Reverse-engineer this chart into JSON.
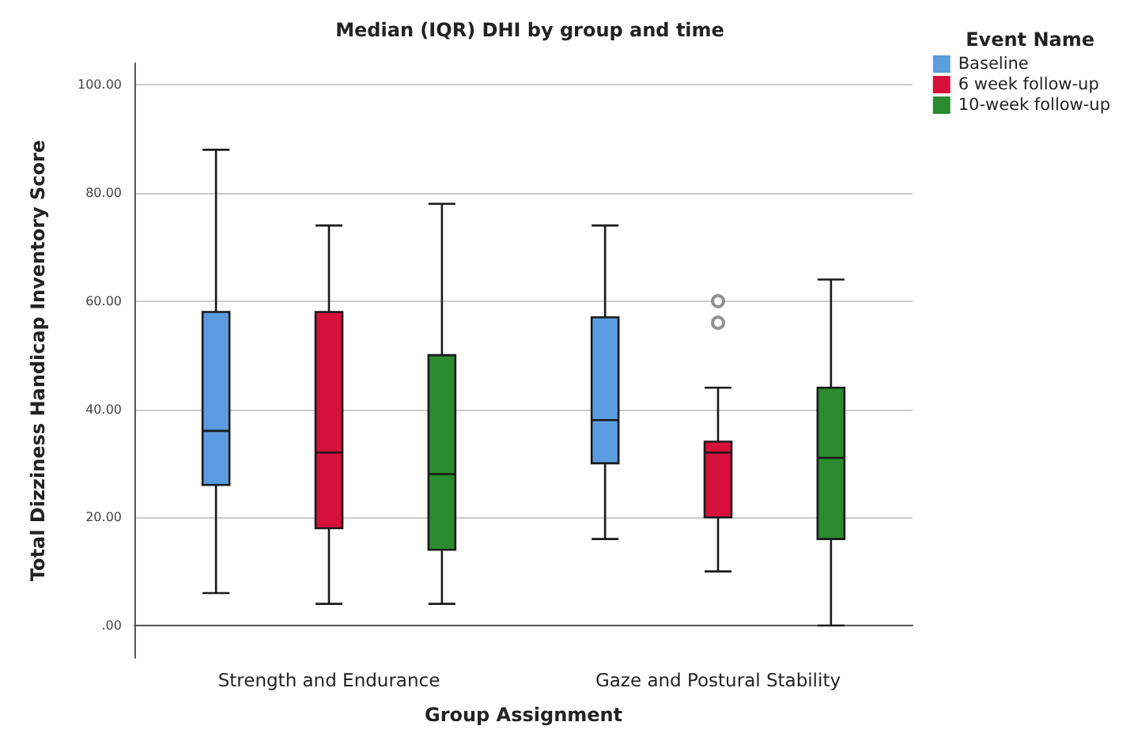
{
  "chart_data": {
    "type": "box",
    "title": "Median (IQR) DHI by group and time",
    "xlabel": "Group Assignment",
    "ylabel": "Total Dizziness Handicap Inventory Score",
    "legend_title": "Event Name",
    "categories": [
      "Strength and Endurance",
      "Gaze and Postural Stability"
    ],
    "series": [
      {
        "name": "Baseline",
        "color": "#5b9be0",
        "boxes": [
          {
            "low": 6,
            "q1": 26,
            "median": 36,
            "q3": 58,
            "high": 88
          },
          {
            "low": 16,
            "q1": 30,
            "median": 38,
            "q3": 57,
            "high": 74
          }
        ]
      },
      {
        "name": "6 week follow-up",
        "color": "#d6103a",
        "boxes": [
          {
            "low": 4,
            "q1": 18,
            "median": 32,
            "q3": 58,
            "high": 74
          },
          {
            "low": 10,
            "q1": 20,
            "median": 32,
            "q3": 34,
            "high": 44,
            "outliers": [
              56,
              60
            ]
          }
        ]
      },
      {
        "name": "10-week follow-up",
        "color": "#2a8a2e",
        "boxes": [
          {
            "low": 4,
            "q1": 14,
            "median": 28,
            "q3": 50,
            "high": 78
          },
          {
            "low": 0,
            "q1": 16,
            "median": 31,
            "q3": 44,
            "high": 64
          }
        ]
      }
    ],
    "ylim": [
      -6,
      104
    ],
    "yticks": [
      {
        "value": 0,
        "label": ".00"
      },
      {
        "value": 20,
        "label": "20.00"
      },
      {
        "value": 40,
        "label": "40.00"
      },
      {
        "value": 60,
        "label": "60.00"
      },
      {
        "value": 80,
        "label": "80.00"
      },
      {
        "value": 100,
        "label": "100.00"
      }
    ],
    "grid": "y",
    "legend": "top right"
  }
}
